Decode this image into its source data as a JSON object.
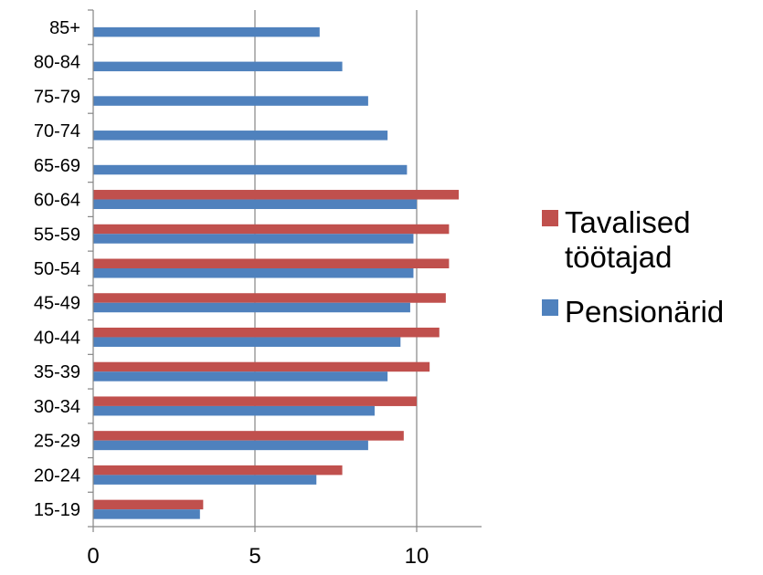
{
  "chart_data": {
    "type": "bar",
    "orientation": "horizontal",
    "categories": [
      "15-19",
      "20-24",
      "25-29",
      "30-34",
      "35-39",
      "40-44",
      "45-49",
      "50-54",
      "55-59",
      "60-64",
      "65-69",
      "70-74",
      "75-79",
      "80-84",
      "85+"
    ],
    "series": [
      {
        "name": "Tavalised töötajad",
        "color": "#C0504D",
        "values": [
          3.4,
          7.7,
          9.6,
          10.0,
          10.4,
          10.7,
          10.9,
          11.0,
          11.0,
          11.3,
          null,
          null,
          null,
          null,
          null
        ]
      },
      {
        "name": "Pensionärid",
        "color": "#4F81BD",
        "values": [
          3.3,
          6.9,
          8.5,
          8.7,
          9.1,
          9.5,
          9.8,
          9.9,
          9.9,
          10.0,
          9.7,
          9.1,
          8.5,
          7.7,
          7.0
        ]
      }
    ],
    "xticks": [
      "0",
      "5",
      "10"
    ],
    "xlim": [
      0,
      12
    ],
    "gridlines": "vertical",
    "legend": {
      "position": "right",
      "entries": [
        {
          "lines": [
            "Tavalised",
            "töötajad"
          ],
          "color": "#C0504D"
        },
        {
          "lines": [
            "Pensionärid"
          ],
          "color": "#4F81BD"
        }
      ]
    }
  }
}
